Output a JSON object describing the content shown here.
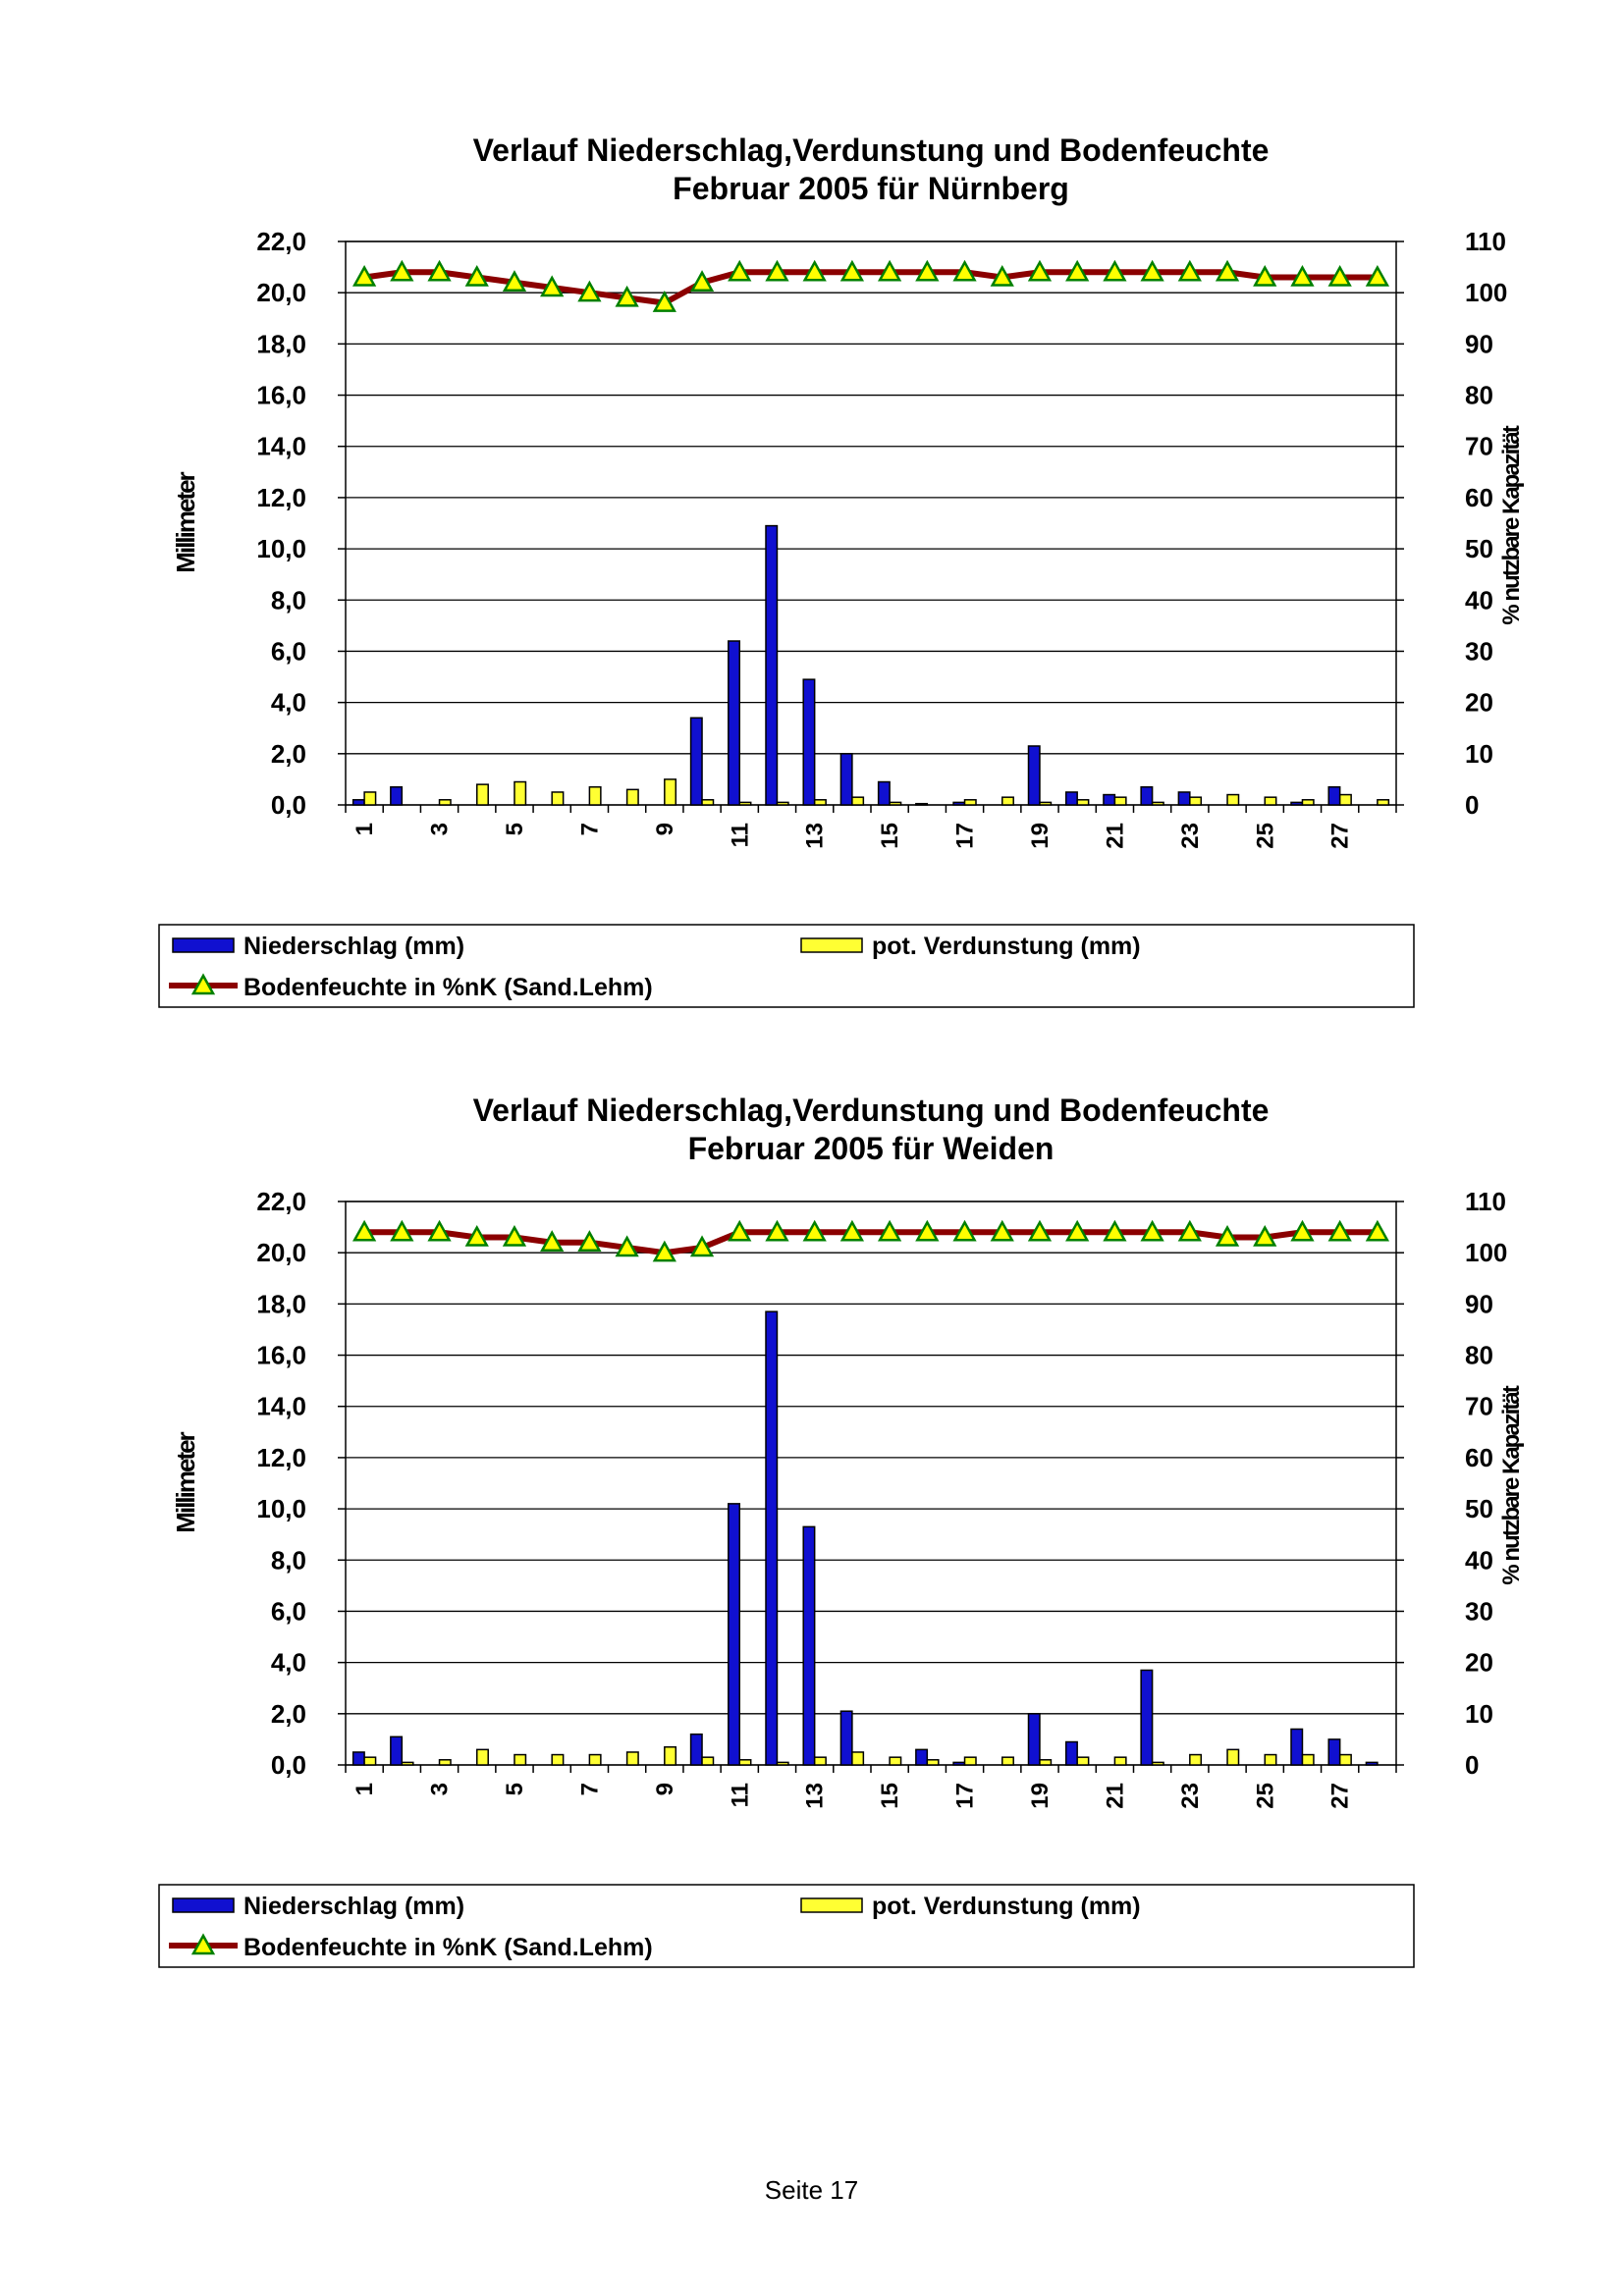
{
  "page": {
    "footer": "Seite 17"
  },
  "legend": {
    "precip": "Niederschlag (mm)",
    "evap": "pot. Verdunstung (mm)",
    "soil": "Bodenfeuchte in %nK (Sand.Lehm)"
  },
  "colors": {
    "precip": "#1010d0",
    "evap": "#ffff33",
    "soil_line": "#8b0000",
    "marker": "#ffff00",
    "marker_edge": "#008000"
  },
  "chart_data": [
    {
      "type": "bar",
      "title": "Verlauf Niederschlag,Verdunstung und Bodenfeuchte",
      "subtitle": "Februar 2005 für Nürnberg",
      "ylabel": "Millimeter",
      "y2label": "% nutzbare Kapazität",
      "ylim": [
        0,
        22
      ],
      "y2lim": [
        0,
        110
      ],
      "yticks": [
        "0,0",
        "2,0",
        "4,0",
        "6,0",
        "8,0",
        "10,0",
        "12,0",
        "14,0",
        "16,0",
        "18,0",
        "20,0",
        "22,0"
      ],
      "y2ticks": [
        "0",
        "10",
        "20",
        "30",
        "40",
        "50",
        "60",
        "70",
        "80",
        "90",
        "100",
        "110"
      ],
      "categories": [
        "1",
        "2",
        "3",
        "4",
        "5",
        "6",
        "7",
        "8",
        "9",
        "10",
        "11",
        "12",
        "13",
        "14",
        "15",
        "16",
        "17",
        "18",
        "19",
        "20",
        "21",
        "22",
        "23",
        "24",
        "25",
        "26",
        "27",
        "28"
      ],
      "xtick_labels": [
        "1",
        "3",
        "5",
        "7",
        "9",
        "11",
        "13",
        "15",
        "17",
        "19",
        "21",
        "23",
        "25",
        "27"
      ],
      "series": [
        {
          "name": "Niederschlag (mm)",
          "values": [
            0.2,
            0.7,
            0.0,
            0.0,
            0.0,
            0.0,
            0.0,
            0.0,
            0.0,
            3.4,
            6.4,
            10.9,
            4.9,
            2.0,
            0.9,
            0.05,
            0.1,
            0.0,
            2.3,
            0.5,
            0.4,
            0.7,
            0.5,
            0.0,
            0.0,
            0.1,
            0.7,
            0.0
          ]
        },
        {
          "name": "pot. Verdunstung (mm)",
          "values": [
            0.5,
            0.0,
            0.2,
            0.8,
            0.9,
            0.5,
            0.7,
            0.6,
            1.0,
            0.2,
            0.1,
            0.1,
            0.2,
            0.3,
            0.1,
            0.0,
            0.2,
            0.3,
            0.1,
            0.2,
            0.3,
            0.1,
            0.3,
            0.4,
            0.3,
            0.2,
            0.4,
            0.2
          ]
        },
        {
          "name": "Bodenfeuchte in %nK (Sand.Lehm)",
          "axis": "right",
          "values": [
            103,
            104,
            104,
            103,
            102,
            101,
            100,
            99,
            98,
            102,
            104,
            104,
            104,
            104,
            104,
            104,
            104,
            103,
            104,
            104,
            104,
            104,
            104,
            104,
            103,
            103,
            103,
            103
          ]
        }
      ]
    },
    {
      "type": "bar",
      "title": "Verlauf Niederschlag,Verdunstung und Bodenfeuchte",
      "subtitle": "Februar 2005 für Weiden",
      "ylabel": "Millimeter",
      "y2label": "% nutzbare Kapazität",
      "ylim": [
        0,
        22
      ],
      "y2lim": [
        0,
        110
      ],
      "yticks": [
        "0,0",
        "2,0",
        "4,0",
        "6,0",
        "8,0",
        "10,0",
        "12,0",
        "14,0",
        "16,0",
        "18,0",
        "20,0",
        "22,0"
      ],
      "y2ticks": [
        "0",
        "10",
        "20",
        "30",
        "40",
        "50",
        "60",
        "70",
        "80",
        "90",
        "100",
        "110"
      ],
      "categories": [
        "1",
        "2",
        "3",
        "4",
        "5",
        "6",
        "7",
        "8",
        "9",
        "10",
        "11",
        "12",
        "13",
        "14",
        "15",
        "16",
        "17",
        "18",
        "19",
        "20",
        "21",
        "22",
        "23",
        "24",
        "25",
        "26",
        "27",
        "28"
      ],
      "xtick_labels": [
        "1",
        "3",
        "5",
        "7",
        "9",
        "11",
        "13",
        "15",
        "17",
        "19",
        "21",
        "23",
        "25",
        "27"
      ],
      "series": [
        {
          "name": "Niederschlag (mm)",
          "values": [
            0.5,
            1.1,
            0.0,
            0.0,
            0.0,
            0.0,
            0.0,
            0.0,
            0.0,
            1.2,
            10.2,
            17.7,
            9.3,
            2.1,
            0.0,
            0.6,
            0.1,
            0.0,
            2.0,
            0.9,
            0.0,
            3.7,
            0.0,
            0.0,
            0.0,
            1.4,
            1.0,
            0.1
          ]
        },
        {
          "name": "pot. Verdunstung (mm)",
          "values": [
            0.3,
            0.1,
            0.2,
            0.6,
            0.4,
            0.4,
            0.4,
            0.5,
            0.7,
            0.3,
            0.2,
            0.1,
            0.3,
            0.5,
            0.3,
            0.2,
            0.3,
            0.3,
            0.2,
            0.3,
            0.3,
            0.1,
            0.4,
            0.6,
            0.4,
            0.4,
            0.4,
            0.0
          ]
        },
        {
          "name": "Bodenfeuchte in %nK (Sand.Lehm)",
          "axis": "right",
          "values": [
            104,
            104,
            104,
            103,
            103,
            102,
            102,
            101,
            100,
            101,
            104,
            104,
            104,
            104,
            104,
            104,
            104,
            104,
            104,
            104,
            104,
            104,
            104,
            103,
            103,
            104,
            104,
            104
          ]
        }
      ]
    }
  ]
}
